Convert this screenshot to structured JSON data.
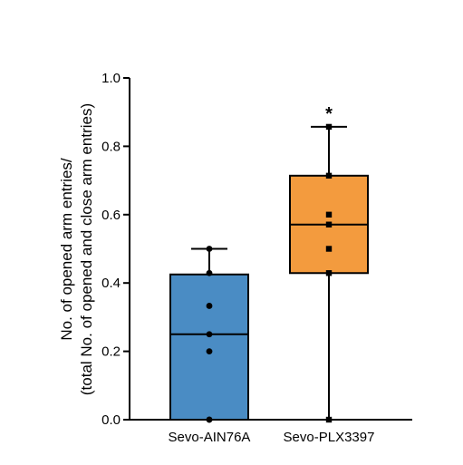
{
  "chart_data": {
    "type": "box",
    "ylabel_line1": "No. of opened arm entries/",
    "ylabel_line2": "(total No. of opened and close arm entries)",
    "xlabel": "",
    "ylim": [
      0,
      1.0
    ],
    "y_ticks": [
      "0.0",
      "0.2",
      "0.4",
      "0.6",
      "0.8",
      "1.0"
    ],
    "categories": [
      "Sevo-AIN76A",
      "Sevo-PLX3397"
    ],
    "boxes": [
      {
        "name": "Sevo-AIN76A",
        "color": "#4a8cc4",
        "min": 0.0,
        "q1": 0.0,
        "median": 0.25,
        "q3": 0.425,
        "max": 0.5,
        "marker": "circle",
        "points": [
          0.0,
          0.0,
          0.2,
          0.25,
          0.333,
          0.429,
          0.5
        ],
        "significance": ""
      },
      {
        "name": "Sevo-PLX3397",
        "color": "#f39b3e",
        "min": 0.0,
        "q1": 0.429,
        "median": 0.571,
        "q3": 0.714,
        "max": 0.857,
        "marker": "square",
        "points": [
          0.0,
          0.429,
          0.5,
          0.571,
          0.6,
          0.714,
          0.857
        ],
        "significance": "*"
      }
    ]
  }
}
